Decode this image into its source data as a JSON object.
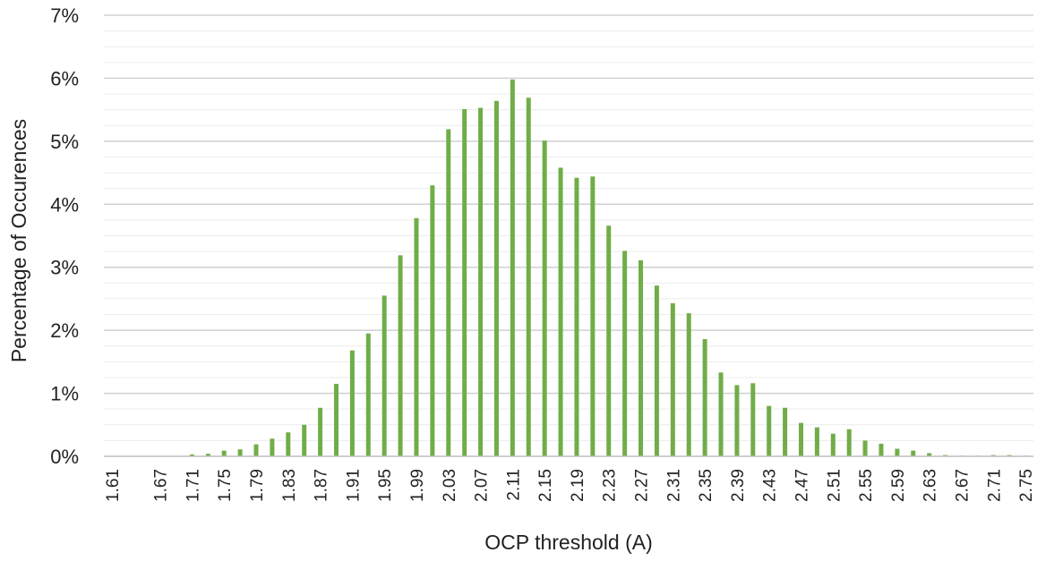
{
  "chart_data": {
    "type": "bar",
    "xlabel": "OCP threshold (A)",
    "ylabel": "Percentage of Occurences",
    "ylim": [
      0,
      7
    ],
    "y_ticks": [
      "0%",
      "1%",
      "2%",
      "3%",
      "4%",
      "5%",
      "6%",
      "7%"
    ],
    "y_minor_step": 0.25,
    "grid": true,
    "legend": "none",
    "bar_color": "#70ad47",
    "categories": [
      "1.61",
      "1.63",
      "1.65",
      "1.67",
      "1.69",
      "1.71",
      "1.73",
      "1.75",
      "1.77",
      "1.79",
      "1.81",
      "1.83",
      "1.85",
      "1.87",
      "1.89",
      "1.91",
      "1.93",
      "1.95",
      "1.97",
      "1.99",
      "2.01",
      "2.03",
      "2.05",
      "2.07",
      "2.09",
      "2.11",
      "2.13",
      "2.15",
      "2.17",
      "2.19",
      "2.21",
      "2.23",
      "2.25",
      "2.27",
      "2.29",
      "2.31",
      "2.33",
      "2.35",
      "2.37",
      "2.39",
      "2.41",
      "2.43",
      "2.45",
      "2.47",
      "2.49",
      "2.51",
      "2.53",
      "2.55",
      "2.57",
      "2.59",
      "2.61",
      "2.63",
      "2.65",
      "2.67",
      "2.69",
      "2.71",
      "2.73",
      "2.75"
    ],
    "tick_labels": [
      "1.61",
      "",
      "",
      "1.67",
      "",
      "1.71",
      "",
      "1.75",
      "",
      "1.79",
      "",
      "1.83",
      "",
      "1.87",
      "",
      "1.91",
      "",
      "1.95",
      "",
      "1.99",
      "",
      "2.03",
      "",
      "2.07",
      "",
      "2.11",
      "",
      "2.15",
      "",
      "2.19",
      "",
      "2.23",
      "",
      "2.27",
      "",
      "2.31",
      "",
      "2.35",
      "",
      "2.39",
      "",
      "2.43",
      "",
      "2.47",
      "",
      "2.51",
      "",
      "2.55",
      "",
      "2.59",
      "",
      "2.63",
      "",
      "2.67",
      "",
      "2.71",
      "",
      "2.75"
    ],
    "values": [
      0.005,
      0.005,
      0.005,
      0.005,
      0.005,
      0.03,
      0.04,
      0.09,
      0.11,
      0.19,
      0.28,
      0.38,
      0.5,
      0.77,
      1.15,
      1.68,
      1.95,
      2.55,
      3.19,
      3.78,
      4.3,
      5.19,
      5.51,
      5.53,
      5.64,
      5.98,
      5.69,
      5.01,
      4.58,
      4.42,
      4.44,
      3.66,
      3.26,
      3.11,
      2.71,
      2.43,
      2.27,
      1.86,
      1.33,
      1.13,
      1.16,
      0.8,
      0.77,
      0.53,
      0.46,
      0.36,
      0.43,
      0.25,
      0.2,
      0.12,
      0.09,
      0.05,
      0.02,
      0.01,
      0.01,
      0.02,
      0.02,
      0.01
    ]
  }
}
